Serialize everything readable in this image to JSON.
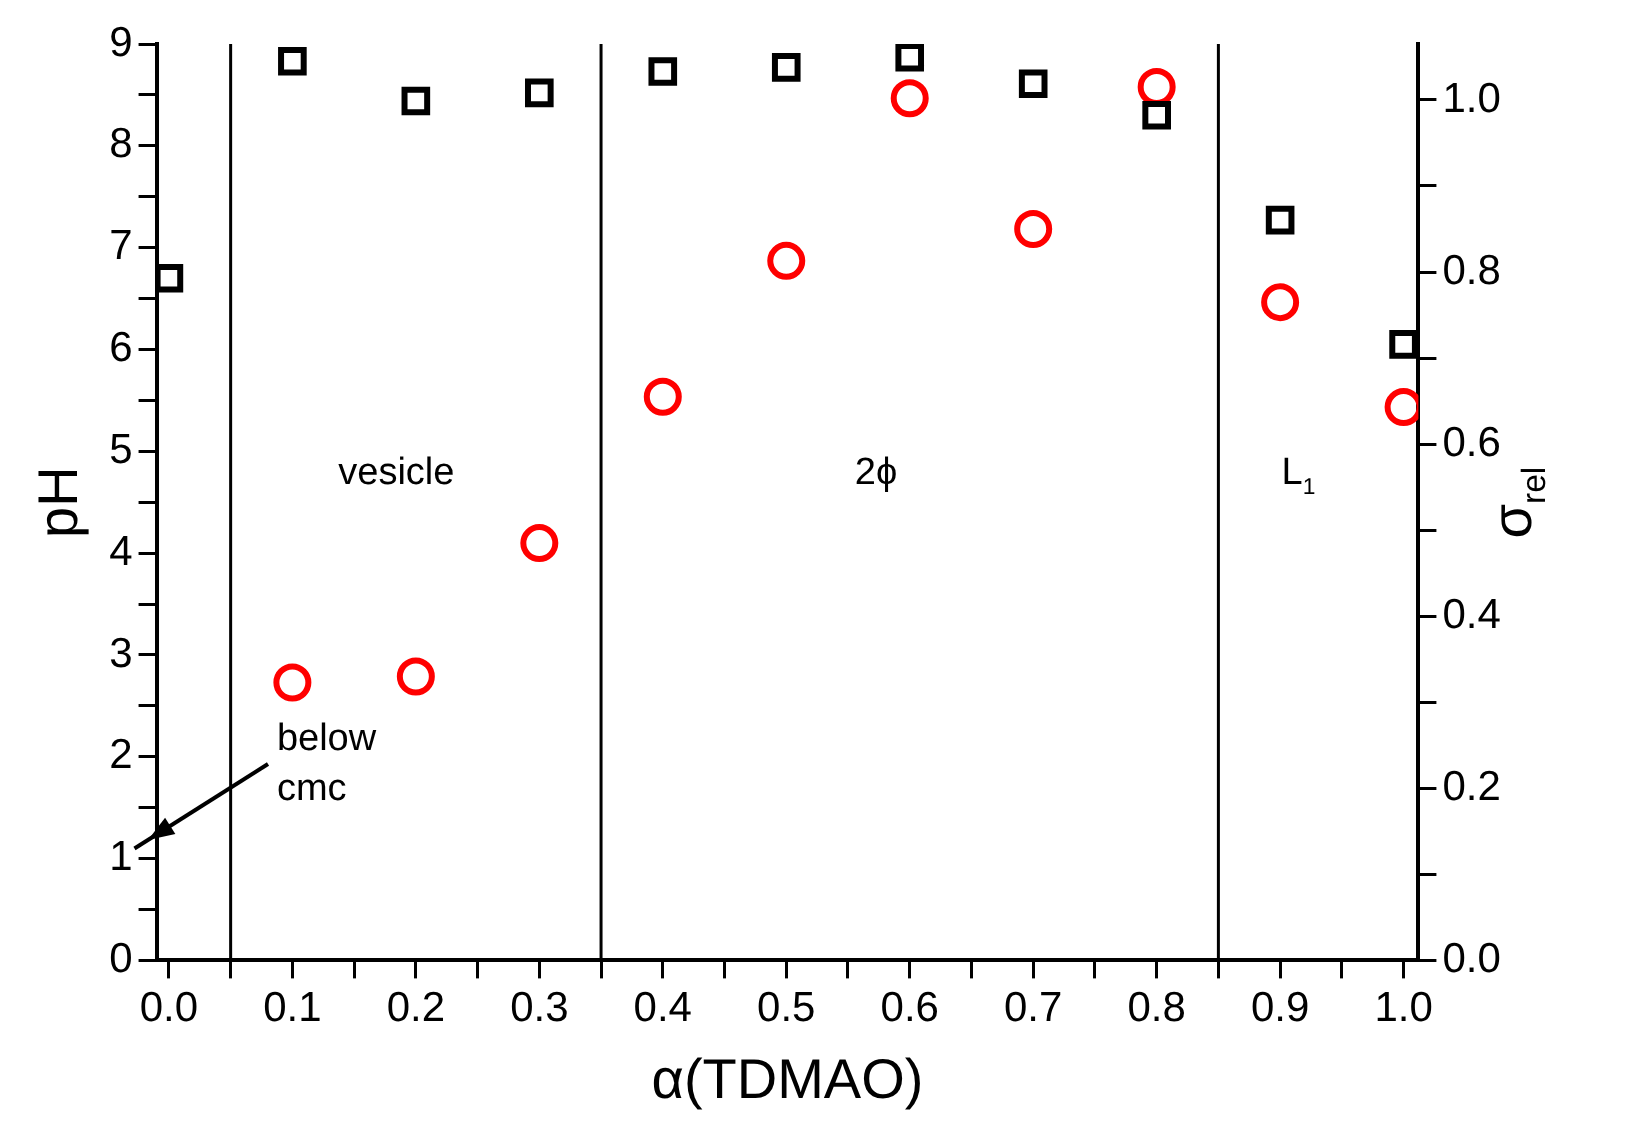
{
  "chart_data": {
    "type": "scatter",
    "xlabel": "α(TDMAO)",
    "ylabel": "pH",
    "y2label": "σ$_{rel}$",
    "x": [
      0,
      0.1,
      0.2,
      0.3,
      0.4,
      0.5,
      0.6,
      0.7,
      0.8,
      0.9,
      1.0
    ],
    "series": [
      {
        "color": "#000000",
        "marker": "square",
        "values": [
          6.7,
          8.83,
          8.44,
          8.52,
          8.73,
          8.77,
          8.87,
          8.61,
          8.3,
          7.27,
          6.05
        ]
      },
      {
        "color": "#ff0000",
        "marker": "circle",
        "axis": "y2",
        "values": [
          null,
          0.323,
          0.33,
          0.485,
          0.655,
          0.813,
          1.002,
          0.85,
          1.015,
          0.765,
          0.643
        ]
      }
    ],
    "xlim": [
      -0.01,
      1.012
    ],
    "xticks": [
      {
        "value": 0,
        "label": "0.0"
      },
      {
        "value": 0.05,
        "label": null
      },
      {
        "value": 0.1,
        "label": "0.1"
      },
      {
        "value": 0.15,
        "label": null
      },
      {
        "value": 0.2,
        "label": "0.2"
      },
      {
        "value": 0.25,
        "label": null
      },
      {
        "value": 0.3,
        "label": "0.3"
      },
      {
        "value": 0.35,
        "label": null
      },
      {
        "value": 0.4,
        "label": "0.4"
      },
      {
        "value": 0.45,
        "label": null
      },
      {
        "value": 0.5,
        "label": "0.5"
      },
      {
        "value": 0.55,
        "label": null
      },
      {
        "value": 0.6,
        "label": "0.6"
      },
      {
        "value": 0.65,
        "label": null
      },
      {
        "value": 0.7,
        "label": "0.7"
      },
      {
        "value": 0.75,
        "label": null
      },
      {
        "value": 0.8,
        "label": "0.8"
      },
      {
        "value": 0.85,
        "label": null
      },
      {
        "value": 0.9,
        "label": "0.9"
      },
      {
        "value": 0.95,
        "label": null
      },
      {
        "value": 1.0,
        "label": "1.0"
      }
    ],
    "ylim": [
      0,
      9
    ],
    "yticks": [
      0,
      {
        "value": 0.5,
        "label": null
      },
      1,
      {
        "value": 1.5,
        "label": null
      },
      2,
      {
        "value": 2.5,
        "label": null
      },
      3,
      {
        "value": 3.5,
        "label": null
      },
      4,
      {
        "value": 4.5,
        "label": null
      },
      5,
      {
        "value": 5.5,
        "label": null
      },
      6,
      {
        "value": 6.5,
        "label": null
      },
      7,
      {
        "value": 7.5,
        "label": null
      },
      8,
      {
        "value": 8.5,
        "label": null
      },
      9
    ],
    "y2lim": [
      0,
      1.065
    ],
    "y2ticks": [
      {
        "value": 0,
        "label": "0.0"
      },
      {
        "value": 0.1,
        "label": null
      },
      {
        "value": 0.2,
        "label": "0.2"
      },
      {
        "value": 0.3,
        "label": null
      },
      {
        "value": 0.4,
        "label": "0.4"
      },
      {
        "value": 0.5,
        "label": null
      },
      {
        "value": 0.6,
        "label": "0.6"
      },
      {
        "value": 0.7,
        "label": null
      },
      {
        "value": 0.8,
        "label": "0.8"
      },
      {
        "value": 0.9,
        "label": null
      },
      {
        "value": 1.0,
        "label": "1.0"
      }
    ],
    "ref_lines": [
      {
        "axis": "x",
        "value": 0.05,
        "color": "#000000"
      },
      {
        "axis": "x",
        "value": 0.35,
        "color": "#000000"
      },
      {
        "axis": "x",
        "value": 0.85,
        "color": "#000000"
      }
    ],
    "annotations": [
      "vesicle",
      "2ϕ",
      "L$_{1}$",
      "below\ncmc"
    ],
    "grid": false,
    "legend": false
  }
}
